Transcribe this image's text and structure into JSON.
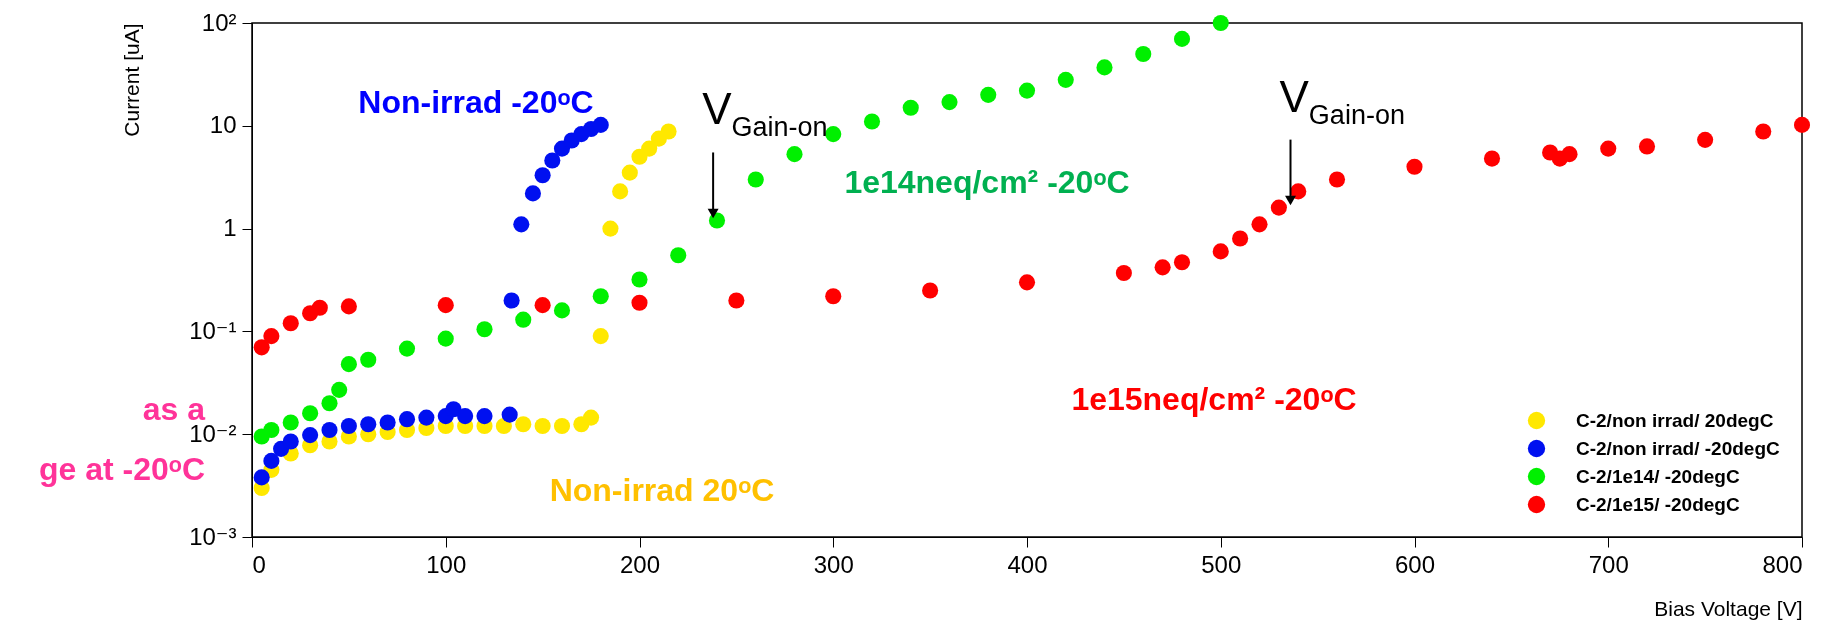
{
  "chart_data": {
    "type": "scatter",
    "xlabel": "Bias Voltage [V]",
    "ylabel": "Current [uA]",
    "log": "y",
    "xlim": [
      0,
      800
    ],
    "ylim": [
      0.001,
      100
    ],
    "xticks": [
      0,
      100,
      200,
      300,
      400,
      500,
      600,
      700,
      800
    ],
    "yticks": [
      {
        "value": 0.001,
        "label": "10⁻³"
      },
      {
        "value": 0.01,
        "label": "10⁻²"
      },
      {
        "value": 0.1,
        "label": "10⁻¹"
      },
      1,
      10,
      {
        "value": 100,
        "label": "10²"
      }
    ],
    "grid": false,
    "legend": "bottom right",
    "marker": "circle",
    "series": [
      {
        "name": "C-2/non irrad/ 20degC",
        "color": "#ffe800",
        "x": [
          5,
          10,
          20,
          30,
          40,
          50,
          60,
          70,
          80,
          90,
          100,
          110,
          120,
          130,
          140,
          150,
          160,
          170,
          175,
          180,
          185,
          190,
          195,
          200,
          205,
          210,
          215
        ],
        "values": [
          0.003,
          0.0045,
          0.0065,
          0.0078,
          0.0085,
          0.0095,
          0.01,
          0.0105,
          0.011,
          0.0115,
          0.012,
          0.012,
          0.012,
          0.012,
          0.0125,
          0.012,
          0.012,
          0.0125,
          0.0145,
          0.09,
          1.0,
          2.3,
          3.5,
          5,
          6,
          7.5,
          8.8
        ]
      },
      {
        "name": "C-2/non irrad/ -20degC",
        "color": "#0010f0",
        "x": [
          5,
          10,
          15,
          20,
          30,
          40,
          50,
          60,
          70,
          80,
          90,
          100,
          104,
          110,
          120,
          133,
          134,
          139,
          145,
          150,
          155,
          160,
          165,
          170,
          175,
          180
        ],
        "values": [
          0.0038,
          0.0055,
          0.0072,
          0.0085,
          0.0098,
          0.011,
          0.012,
          0.0125,
          0.013,
          0.014,
          0.0145,
          0.015,
          0.0175,
          0.015,
          0.015,
          0.0155,
          0.2,
          1.1,
          2.2,
          3.3,
          4.6,
          6,
          7.2,
          8.3,
          9.3,
          10.2
        ]
      },
      {
        "name": "C-2/1e14/ -20degC",
        "color": "#00f000",
        "x": [
          5,
          10,
          20,
          30,
          40,
          45,
          50,
          60,
          80,
          100,
          120,
          140,
          160,
          180,
          200,
          220,
          240,
          260,
          280,
          300,
          320,
          340,
          360,
          380,
          400,
          420,
          440,
          460,
          480,
          500
        ],
        "values": [
          0.0095,
          0.011,
          0.013,
          0.016,
          0.02,
          0.027,
          0.048,
          0.053,
          0.068,
          0.085,
          0.105,
          0.13,
          0.16,
          0.22,
          0.32,
          0.55,
          1.2,
          3,
          5.3,
          8.3,
          11,
          15,
          17,
          20,
          22,
          28,
          37,
          50,
          70,
          100
        ]
      },
      {
        "name": "C-2/1e15/ -20degC",
        "color": "#ff0000",
        "x": [
          5,
          10,
          20,
          30,
          35,
          50,
          100,
          150,
          200,
          250,
          300,
          350,
          400,
          450,
          470,
          480,
          500,
          510,
          520,
          530,
          540,
          560,
          600,
          640,
          670,
          675,
          680,
          700,
          720,
          750,
          780,
          800
        ],
        "values": [
          0.07,
          0.09,
          0.12,
          0.15,
          0.17,
          0.175,
          0.18,
          0.18,
          0.19,
          0.2,
          0.22,
          0.25,
          0.3,
          0.37,
          0.42,
          0.47,
          0.6,
          0.8,
          1.1,
          1.6,
          2.3,
          3,
          4,
          4.8,
          5.5,
          4.8,
          5.3,
          6,
          6.3,
          7.3,
          8.8,
          10.2
        ]
      }
    ],
    "annotations": [
      "Non-irrad -20ᵒC",
      "Non-irrad 20ᵒC",
      "1e14neq/cm² -20ᵒC",
      "1e15neq/cm² -20ᵒC",
      {
        "text": "V$_{Gain-on}$",
        "x": 238,
        "y": 1.2
      },
      {
        "text": "V$_{Gain-on}$",
        "x": 536,
        "y": 1.6
      },
      "as a",
      "ge at -20ᵒC"
    ]
  }
}
